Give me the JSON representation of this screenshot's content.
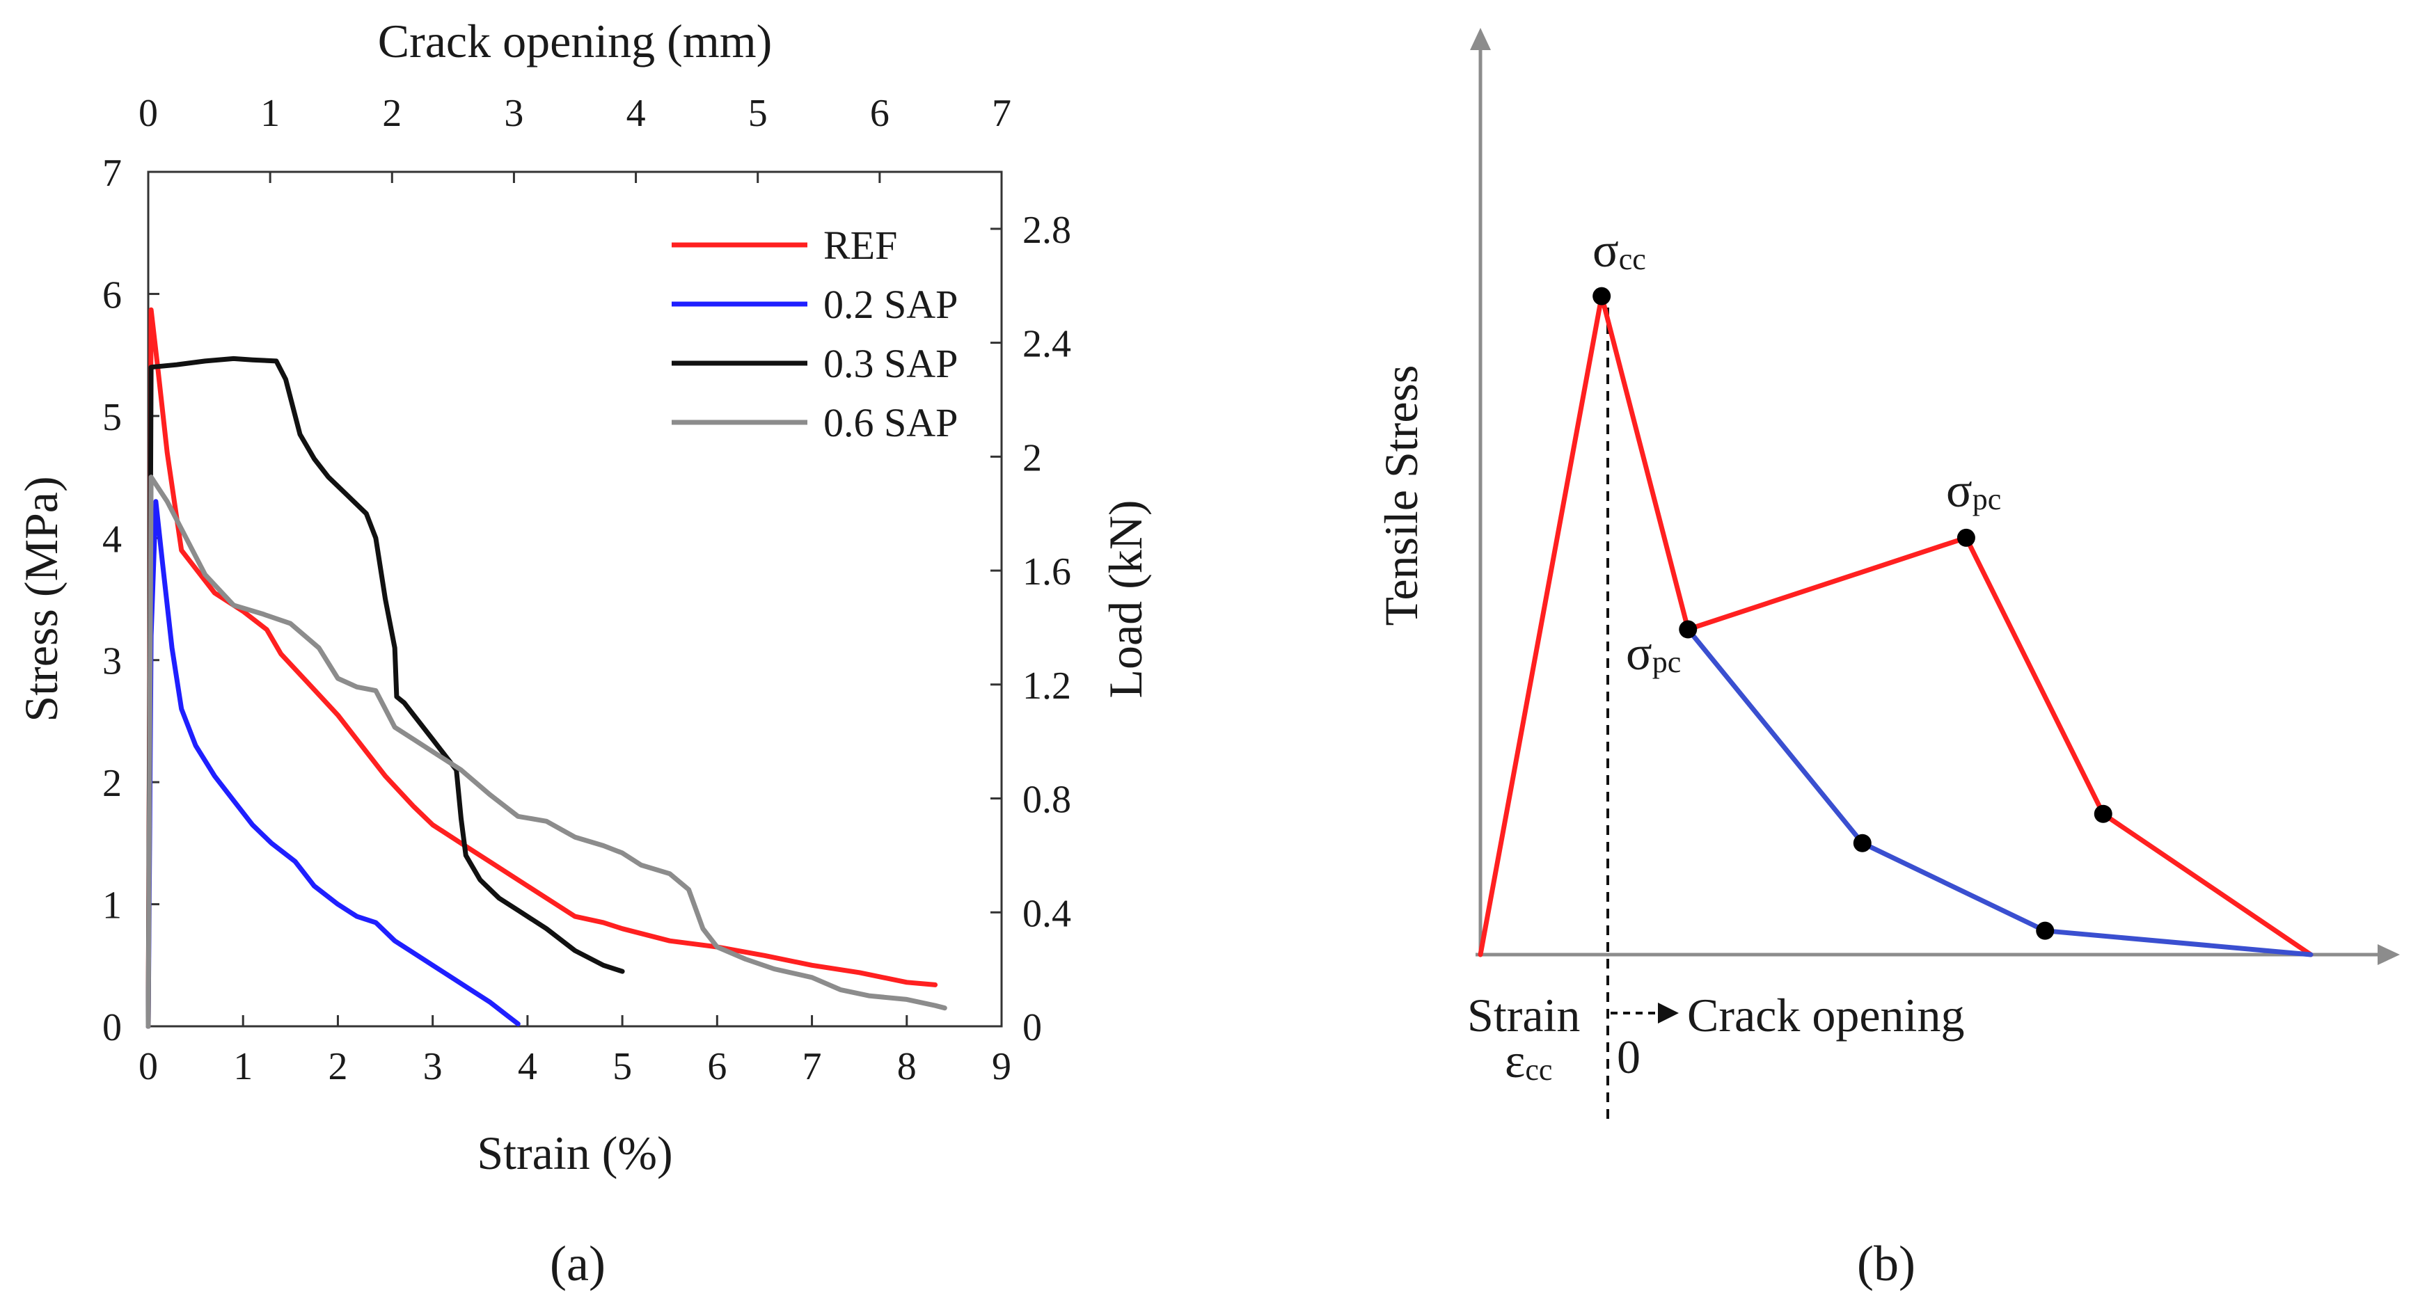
{
  "chart_data": [
    {
      "type": "line",
      "panel_label": "(a)",
      "xlabel": "Strain (%)",
      "ylabel": "Stress (MPa)",
      "x2label": "Crack opening (mm)",
      "y2label": "Load (kN)",
      "xlim": [
        0,
        9
      ],
      "ylim": [
        0,
        7
      ],
      "x2lim": [
        0,
        7
      ],
      "y2lim": [
        0,
        3.0
      ],
      "x_ticks": [
        "0",
        "1",
        "2",
        "3",
        "4",
        "5",
        "6",
        "7",
        "8",
        "9"
      ],
      "y_ticks": [
        "0",
        "1",
        "2",
        "3",
        "4",
        "5",
        "6",
        "7"
      ],
      "x2_ticks": [
        "0",
        "1",
        "2",
        "3",
        "4",
        "5",
        "6",
        "7"
      ],
      "y2_ticks": [
        "0",
        "0.4",
        "0.8",
        "1.2",
        "1.6",
        "2",
        "2.4",
        "2.8"
      ],
      "legend_position": "top-right",
      "grid": false,
      "series": [
        {
          "name": "REF",
          "color": "#ff2020",
          "points": [
            [
              0,
              0
            ],
            [
              0.03,
              5.87
            ],
            [
              0.1,
              5.4
            ],
            [
              0.2,
              4.7
            ],
            [
              0.35,
              3.9
            ],
            [
              0.5,
              3.75
            ],
            [
              0.7,
              3.55
            ],
            [
              1.0,
              3.4
            ],
            [
              1.25,
              3.25
            ],
            [
              1.4,
              3.05
            ],
            [
              1.7,
              2.8
            ],
            [
              2.0,
              2.55
            ],
            [
              2.3,
              2.25
            ],
            [
              2.5,
              2.05
            ],
            [
              2.8,
              1.8
            ],
            [
              3.0,
              1.65
            ],
            [
              3.3,
              1.5
            ],
            [
              3.6,
              1.35
            ],
            [
              4.0,
              1.15
            ],
            [
              4.3,
              1.0
            ],
            [
              4.5,
              0.9
            ],
            [
              4.8,
              0.85
            ],
            [
              5.0,
              0.8
            ],
            [
              5.5,
              0.7
            ],
            [
              6.0,
              0.65
            ],
            [
              6.5,
              0.58
            ],
            [
              7.0,
              0.5
            ],
            [
              7.5,
              0.44
            ],
            [
              8.0,
              0.36
            ],
            [
              8.3,
              0.34
            ]
          ]
        },
        {
          "name": "0.2 SAP",
          "color": "#1f1fff",
          "points": [
            [
              0,
              0
            ],
            [
              0.03,
              3.2
            ],
            [
              0.08,
              4.3
            ],
            [
              0.15,
              3.8
            ],
            [
              0.25,
              3.1
            ],
            [
              0.35,
              2.6
            ],
            [
              0.5,
              2.3
            ],
            [
              0.7,
              2.05
            ],
            [
              0.9,
              1.85
            ],
            [
              1.1,
              1.65
            ],
            [
              1.3,
              1.5
            ],
            [
              1.55,
              1.35
            ],
            [
              1.75,
              1.15
            ],
            [
              2.0,
              1.0
            ],
            [
              2.2,
              0.9
            ],
            [
              2.4,
              0.85
            ],
            [
              2.6,
              0.7
            ],
            [
              2.8,
              0.6
            ],
            [
              3.0,
              0.5
            ],
            [
              3.2,
              0.4
            ],
            [
              3.4,
              0.3
            ],
            [
              3.6,
              0.2
            ],
            [
              3.8,
              0.08
            ],
            [
              3.9,
              0.02
            ]
          ]
        },
        {
          "name": "0.3 SAP",
          "color": "#111111",
          "points": [
            [
              0,
              0
            ],
            [
              0.03,
              5.4
            ],
            [
              0.3,
              5.42
            ],
            [
              0.6,
              5.45
            ],
            [
              0.9,
              5.47
            ],
            [
              1.1,
              5.46
            ],
            [
              1.35,
              5.45
            ],
            [
              1.45,
              5.3
            ],
            [
              1.6,
              4.85
            ],
            [
              1.75,
              4.65
            ],
            [
              1.9,
              4.5
            ],
            [
              2.1,
              4.35
            ],
            [
              2.3,
              4.2
            ],
            [
              2.4,
              4.0
            ],
            [
              2.5,
              3.5
            ],
            [
              2.6,
              3.1
            ],
            [
              2.62,
              2.7
            ],
            [
              2.7,
              2.65
            ],
            [
              2.8,
              2.55
            ],
            [
              3.0,
              2.35
            ],
            [
              3.1,
              2.25
            ],
            [
              3.15,
              2.2
            ],
            [
              3.25,
              2.1
            ],
            [
              3.3,
              1.7
            ],
            [
              3.35,
              1.4
            ],
            [
              3.5,
              1.2
            ],
            [
              3.7,
              1.05
            ],
            [
              3.9,
              0.95
            ],
            [
              4.2,
              0.8
            ],
            [
              4.5,
              0.62
            ],
            [
              4.8,
              0.5
            ],
            [
              5.0,
              0.45
            ]
          ]
        },
        {
          "name": "0.6 SAP",
          "color": "#8c8c8c",
          "points": [
            [
              0,
              0
            ],
            [
              0.03,
              4.5
            ],
            [
              0.2,
              4.3
            ],
            [
              0.4,
              4.0
            ],
            [
              0.6,
              3.7
            ],
            [
              0.9,
              3.45
            ],
            [
              1.2,
              3.38
            ],
            [
              1.5,
              3.3
            ],
            [
              1.8,
              3.1
            ],
            [
              2.0,
              2.85
            ],
            [
              2.2,
              2.78
            ],
            [
              2.4,
              2.75
            ],
            [
              2.6,
              2.45
            ],
            [
              2.8,
              2.35
            ],
            [
              3.0,
              2.25
            ],
            [
              3.3,
              2.1
            ],
            [
              3.6,
              1.9
            ],
            [
              3.9,
              1.72
            ],
            [
              4.2,
              1.68
            ],
            [
              4.5,
              1.55
            ],
            [
              4.8,
              1.48
            ],
            [
              5.0,
              1.42
            ],
            [
              5.2,
              1.32
            ],
            [
              5.5,
              1.25
            ],
            [
              5.7,
              1.12
            ],
            [
              5.85,
              0.8
            ],
            [
              6.0,
              0.65
            ],
            [
              6.3,
              0.55
            ],
            [
              6.6,
              0.47
            ],
            [
              7.0,
              0.4
            ],
            [
              7.3,
              0.3
            ],
            [
              7.6,
              0.25
            ],
            [
              8.0,
              0.22
            ],
            [
              8.3,
              0.17
            ],
            [
              8.4,
              0.15
            ]
          ]
        }
      ]
    },
    {
      "type": "line",
      "panel_label": "(b)",
      "ylabel": "Tensile Stress",
      "x_annotation_strain": "Strain",
      "x_annotation_ecc": "εcc",
      "x_annotation_zero": "0",
      "x_annotation_crack": "Crack opening",
      "peak_label": "σcc",
      "post_label_upper": "σpc",
      "post_label_lower": "σpc",
      "series": [
        {
          "color": "#ff2020",
          "points": [
            [
              0,
              0
            ],
            [
              0.146,
              0.992
            ],
            [
              0.25,
              0.49
            ],
            [
              0.585,
              0.628
            ],
            [
              0.75,
              0.212
            ],
            [
              1.0,
              0.0
            ]
          ]
        },
        {
          "color": "#3a4fd0",
          "points": [
            [
              0.25,
              0.49
            ],
            [
              0.46,
              0.168
            ],
            [
              0.68,
              0.036
            ],
            [
              1.0,
              0.0
            ]
          ]
        }
      ],
      "markers": [
        [
          0.146,
          0.992
        ],
        [
          0.25,
          0.49
        ],
        [
          0.585,
          0.628
        ],
        [
          0.75,
          0.212
        ],
        [
          0.46,
          0.168
        ],
        [
          0.68,
          0.036
        ]
      ]
    }
  ]
}
